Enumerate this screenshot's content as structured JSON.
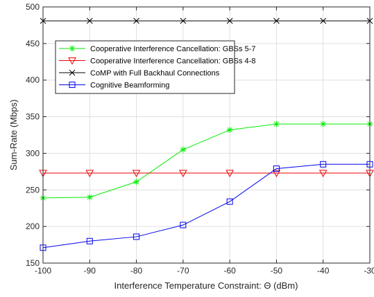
{
  "chart_data": {
    "type": "line",
    "xlabel": "Interference Temperature Constraint: Θ (dBm)",
    "ylabel": "Sum-Rate (Mbps)",
    "xlim": [
      -100,
      -30
    ],
    "ylim": [
      150,
      500
    ],
    "xticks": [
      -100,
      -90,
      -80,
      -70,
      -60,
      -50,
      -40,
      -30
    ],
    "yticks": [
      150,
      200,
      250,
      300,
      350,
      400,
      450,
      500
    ],
    "grid": true,
    "legend_position": "top-left",
    "x": [
      -100,
      -90,
      -80,
      -70,
      -60,
      -50,
      -40,
      -30
    ],
    "series": [
      {
        "name": "Cooperative Interference Cancellation: GBSs 5-7",
        "color": "#00ee00",
        "marker": "asterisk",
        "values": [
          239,
          240,
          261,
          305,
          332,
          340,
          340,
          340
        ]
      },
      {
        "name": "Cooperative Interference Cancellation: GBSs 4-8",
        "color": "#ee0000",
        "marker": "triangle-down",
        "values": [
          273,
          273,
          273,
          273,
          273,
          273,
          273,
          273
        ]
      },
      {
        "name": "CoMP with Full Backhaul Connections",
        "color": "#000000",
        "marker": "x",
        "values": [
          481,
          481,
          481,
          481,
          481,
          481,
          481,
          481
        ]
      },
      {
        "name": "Cognitive Beamforming",
        "color": "#0000ee",
        "marker": "square",
        "values": [
          171,
          180,
          186,
          202,
          234,
          279,
          285,
          285
        ]
      }
    ]
  }
}
